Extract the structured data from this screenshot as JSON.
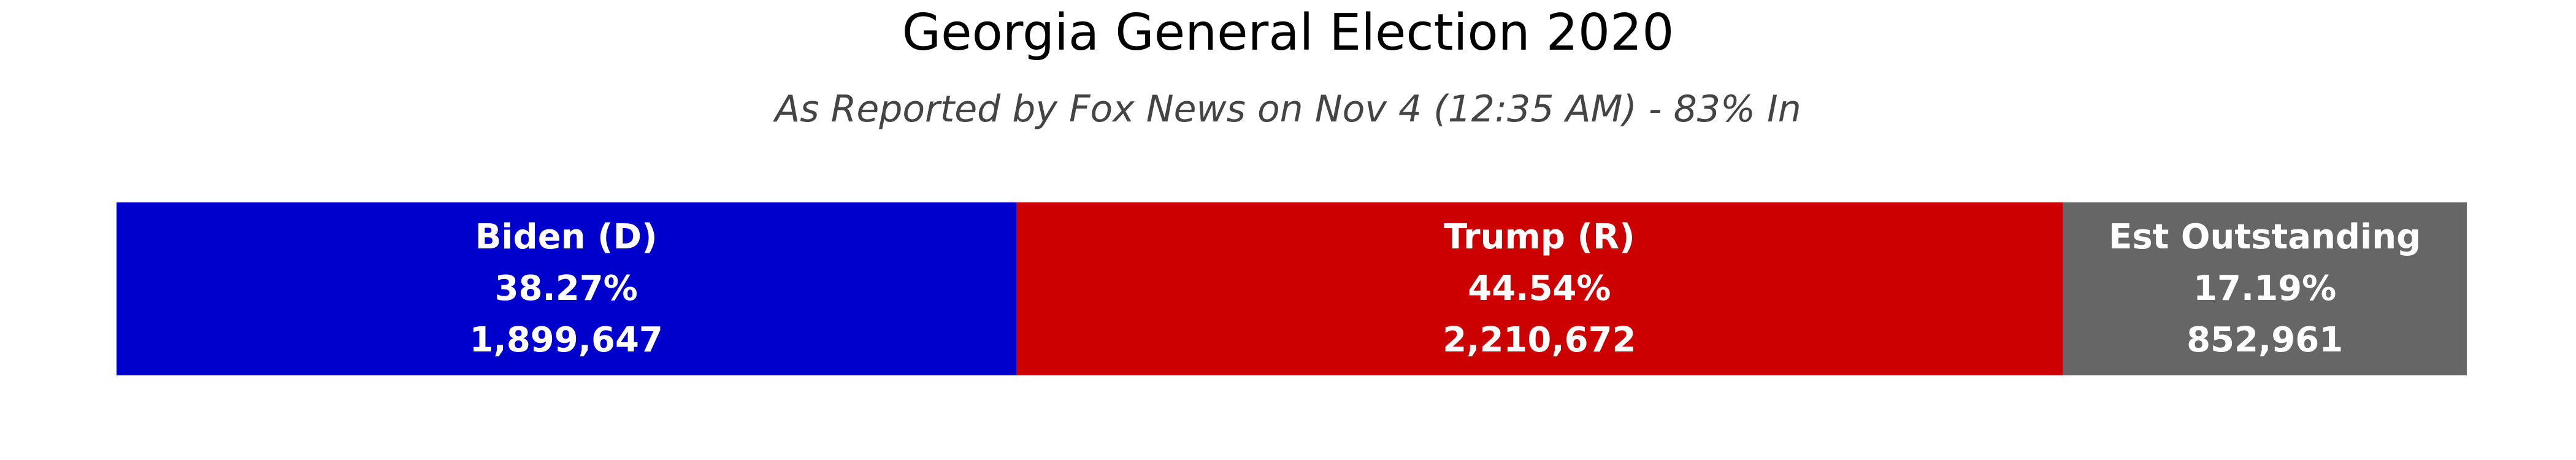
{
  "title": "Georgia General Election 2020",
  "subtitle": "As Reported by Fox News on Nov 4 (12:35 AM) - 83% In",
  "chart_data": {
    "type": "bar",
    "orientation": "horizontal-stacked",
    "title": "Georgia General Election 2020",
    "subtitle": "As Reported by Fox News on Nov 4 (12:35 AM) - 83% In",
    "series": [
      {
        "name": "Biden (D)",
        "percent_label": "38.27%",
        "percent": 38.27,
        "votes_label": "1,899,647",
        "votes": 1899647,
        "color": "#0000CC"
      },
      {
        "name": "Trump (R)",
        "percent_label": "44.54%",
        "percent": 44.54,
        "votes_label": "2,210,672",
        "votes": 2210672,
        "color": "#CC0000"
      },
      {
        "name": "Est Outstanding",
        "percent_label": "17.19%",
        "percent": 17.19,
        "votes_label": "852,961",
        "votes": 852961,
        "color": "#666666"
      }
    ]
  }
}
